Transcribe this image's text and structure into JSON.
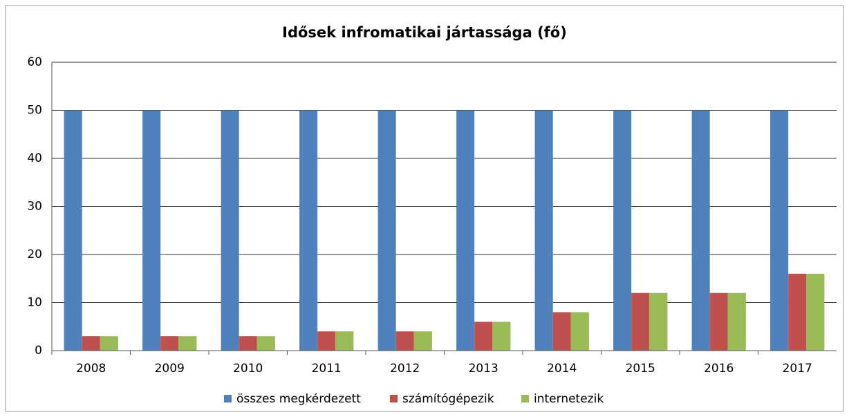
{
  "chart_data": {
    "type": "bar",
    "title": "Idősek infromatikai jártassága (fő)",
    "categories": [
      "2008",
      "2009",
      "2010",
      "2011",
      "2012",
      "2013",
      "2014",
      "2015",
      "2016",
      "2017"
    ],
    "series": [
      {
        "name": "összes megkérdezett",
        "color": "#4f81bd",
        "values": [
          50,
          50,
          50,
          50,
          50,
          50,
          50,
          50,
          50,
          50
        ]
      },
      {
        "name": "számítógépezik",
        "color": "#c0504d",
        "values": [
          3,
          3,
          3,
          4,
          4,
          6,
          8,
          12,
          12,
          16
        ]
      },
      {
        "name": "internetezik",
        "color": "#9bbb59",
        "values": [
          3,
          3,
          3,
          4,
          4,
          6,
          8,
          12,
          12,
          16
        ]
      }
    ],
    "ylim": [
      0,
      60
    ],
    "yticks": [
      0,
      10,
      20,
      30,
      40,
      50,
      60
    ],
    "grid": true,
    "legend": "bottom"
  }
}
